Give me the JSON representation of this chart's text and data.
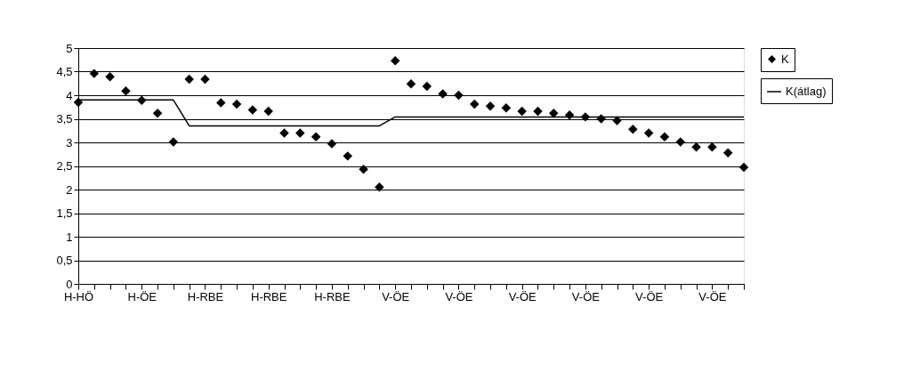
{
  "chart_data": {
    "type": "scatter",
    "categories": [
      "H-HÖ",
      null,
      null,
      null,
      "H-ÖE",
      null,
      null,
      null,
      "H-RBE",
      null,
      null,
      null,
      "H-RBE",
      null,
      null,
      null,
      "H-RBE",
      null,
      null,
      null,
      "V-ÖE",
      null,
      null,
      null,
      "V-ÖE",
      null,
      null,
      null,
      "V-ÖE",
      null,
      null,
      null,
      "V-ÖE",
      null,
      null,
      null,
      "V-ÖE",
      null,
      null,
      null,
      "V-ÖE",
      null,
      null
    ],
    "series": [
      {
        "name": "K",
        "marker": "diamond",
        "color": "#000000",
        "values": [
          3.85,
          4.46,
          4.39,
          4.09,
          3.89,
          3.62,
          3.01,
          4.34,
          4.34,
          3.84,
          3.81,
          3.69,
          3.66,
          3.2,
          3.2,
          3.12,
          2.97,
          2.71,
          2.43,
          2.05,
          4.73,
          4.24,
          4.19,
          4.03,
          4.0,
          3.81,
          3.77,
          3.73,
          3.66,
          3.66,
          3.62,
          3.58,
          3.54,
          3.5,
          3.46,
          3.28,
          3.2,
          3.12,
          3.01,
          2.9,
          2.9,
          2.78,
          2.47
        ]
      },
      {
        "name": "K(átlag)",
        "type": "line",
        "marker": "none",
        "color": "#000000",
        "values": [
          3.9,
          3.9,
          3.9,
          3.9,
          3.9,
          3.9,
          3.9,
          3.35,
          3.35,
          3.35,
          3.35,
          3.35,
          3.35,
          3.35,
          3.35,
          3.35,
          3.35,
          3.35,
          3.35,
          3.35,
          3.54,
          3.54,
          3.54,
          3.54,
          3.54,
          3.54,
          3.54,
          3.54,
          3.54,
          3.54,
          3.54,
          3.54,
          3.54,
          3.54,
          3.54,
          3.54,
          3.54,
          3.54,
          3.54,
          3.54,
          3.54,
          3.54,
          3.54
        ]
      }
    ],
    "ylim": [
      0,
      5
    ],
    "yticks": [
      0,
      {
        "value": 0.5,
        "label": "0,5"
      },
      1,
      {
        "value": 1.5,
        "label": "1,5"
      },
      2,
      {
        "value": 2.5,
        "label": "2,5"
      },
      3,
      {
        "value": 3.5,
        "label": "3,5"
      },
      4,
      {
        "value": 4.5,
        "label": "4,5"
      },
      5
    ],
    "grid": "y",
    "legend": "right",
    "line_style": "solid"
  }
}
